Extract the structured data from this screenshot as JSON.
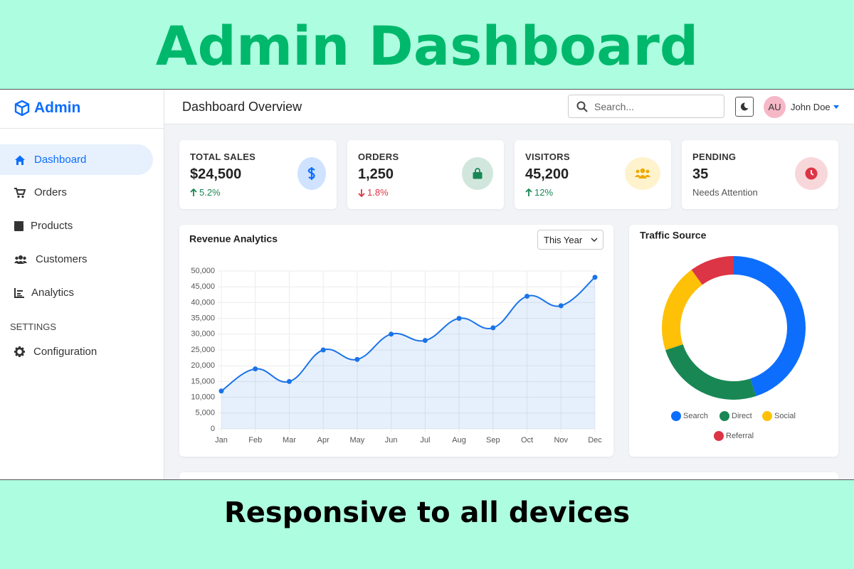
{
  "banner": {
    "title": "Admin Dashboard",
    "subtitle": "Responsive to all devices"
  },
  "sidebar": {
    "brand": "Admin",
    "nav": [
      "Dashboard",
      "Orders",
      "Products",
      "Customers",
      "Analytics"
    ],
    "section": "SETTINGS",
    "settings_nav": [
      "Configuration"
    ]
  },
  "topbar": {
    "title": "Dashboard Overview",
    "search_placeholder": "Search...",
    "avatar": "AU",
    "user": "John Doe"
  },
  "stats": [
    {
      "label": "TOTAL SALES",
      "value": "$24,500",
      "change": "5.2%",
      "trend": "up"
    },
    {
      "label": "ORDERS",
      "value": "1,250",
      "change": "1.8%",
      "trend": "down"
    },
    {
      "label": "VISITORS",
      "value": "45,200",
      "change": "12%",
      "trend": "up"
    },
    {
      "label": "PENDING",
      "value": "35",
      "note": "Needs Attention"
    }
  ],
  "revenue_chart": {
    "type": "line",
    "title": "Revenue Analytics",
    "filter": "This Year",
    "categories": [
      "Jan",
      "Feb",
      "Mar",
      "Apr",
      "May",
      "Jun",
      "Jul",
      "Aug",
      "Sep",
      "Oct",
      "Nov",
      "Dec"
    ],
    "values": [
      12000,
      19000,
      15000,
      25000,
      22000,
      30000,
      28000,
      35000,
      32000,
      42000,
      39000,
      48000
    ],
    "color": "#1a73e8",
    "ylim": [
      0,
      50000
    ],
    "yticks": [
      0,
      {
        "value": 5000,
        "label": "5,000"
      },
      {
        "value": 10000,
        "label": "10,000"
      },
      {
        "value": 15000,
        "label": "15,000"
      },
      {
        "value": 20000,
        "label": "20,000"
      },
      {
        "value": 25000,
        "label": "25,000"
      },
      {
        "value": 30000,
        "label": "30,000"
      },
      {
        "value": 35000,
        "label": "35,000"
      },
      {
        "value": 40000,
        "label": "40,000"
      },
      {
        "value": 45000,
        "label": "45,000"
      },
      {
        "value": 50000,
        "label": "50,000"
      }
    ],
    "grid": true
  },
  "traffic_chart": {
    "type": "doughnut",
    "title": "Traffic Source",
    "categories": [
      "Search",
      "Direct",
      "Social",
      "Referral"
    ],
    "values": [
      45,
      25,
      20,
      10
    ],
    "colors": [
      "#0d6efd",
      "#198754",
      "#ffc107",
      "#dc3545"
    ]
  }
}
